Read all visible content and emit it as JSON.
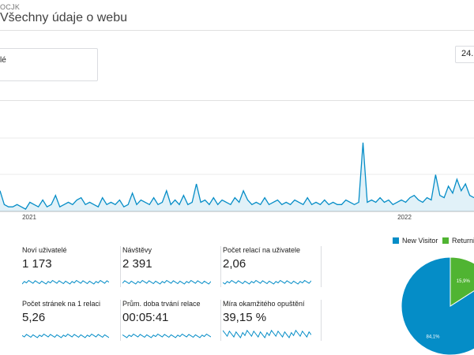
{
  "header": {
    "breadcrumb": "OCJK",
    "view_title": "Všechny údaje o webu"
  },
  "segment": {
    "label": "lé"
  },
  "date_range": {
    "label": "24."
  },
  "overview_chart": {
    "x_ticks": [
      "2021",
      "2022"
    ],
    "color": "#058dc7",
    "grid": true
  },
  "metrics": [
    {
      "label": "Noví uživatelé",
      "value": "1 173"
    },
    {
      "label": "Návštěvy",
      "value": "2 391"
    },
    {
      "label": "Počet relací na uživatele",
      "value": "2,06"
    },
    {
      "label": "Počet stránek na 1 relaci",
      "value": "5,26"
    },
    {
      "label": "Prům. doba trvání relace",
      "value": "00:05:41"
    },
    {
      "label": "Míra okamžitého opuštění",
      "value": "39,15 %"
    }
  ],
  "pie": {
    "legend": [
      {
        "name": "New Visitor",
        "color": "#058dc7"
      },
      {
        "name": "Returnin",
        "color": "#50b432"
      }
    ],
    "slices": [
      {
        "name": "New Visitor",
        "value": 84.1,
        "label": "84,1%",
        "color": "#058dc7"
      },
      {
        "name": "Returning Visitor",
        "value": 15.9,
        "label": "15,9%",
        "color": "#50b432"
      }
    ]
  },
  "chart_data": {
    "type": "line",
    "x_ticks": [
      "2021",
      "2022"
    ],
    "series": [
      {
        "name": "",
        "values": [
          9,
          3,
          2,
          2,
          3,
          2,
          1,
          4,
          3,
          2,
          5,
          2,
          3,
          7,
          2,
          3,
          4,
          3,
          5,
          6,
          3,
          4,
          3,
          2,
          6,
          3,
          4,
          3,
          5,
          2,
          3,
          8,
          3,
          5,
          4,
          3,
          6,
          3,
          4,
          9,
          3,
          5,
          3,
          7,
          3,
          4,
          12,
          4,
          5,
          3,
          6,
          3,
          5,
          4,
          3,
          6,
          4,
          9,
          5,
          3,
          4,
          3,
          6,
          3,
          4,
          5,
          3,
          4,
          3,
          5,
          4,
          3,
          6,
          3,
          4,
          3,
          5,
          3,
          4,
          3,
          3,
          5,
          4,
          3,
          4,
          30,
          4,
          5,
          4,
          6,
          4,
          5,
          3,
          4,
          5,
          4,
          6,
          7,
          5,
          4,
          6,
          5,
          16,
          7,
          6,
          11,
          8,
          14,
          9,
          12,
          7,
          6
        ]
      }
    ]
  }
}
